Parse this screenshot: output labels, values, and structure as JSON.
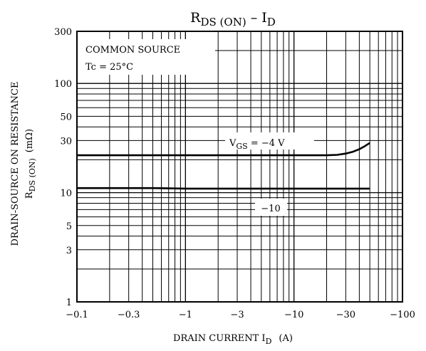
{
  "chart_data": {
    "type": "line",
    "title_main": "R",
    "title_sub": "DS (ON)",
    "title_rest": "  –  I",
    "title_sub2": "D",
    "xscale": "log",
    "yscale": "log",
    "xlim": [
      -0.1,
      -100
    ],
    "ylim": [
      1,
      300
    ],
    "grid": true,
    "x_ticks": [
      -0.1,
      -0.3,
      -1,
      -3,
      -10,
      -30,
      -100
    ],
    "x_tick_labels": [
      "−0.1",
      "−0.3",
      "−1",
      "−3",
      "−10",
      "−30",
      "−100"
    ],
    "y_ticks": [
      1,
      3,
      5,
      10,
      30,
      50,
      100,
      300
    ],
    "y_tick_labels": [
      "1",
      "3",
      "5",
      "10",
      "30",
      "50",
      "100",
      "300"
    ],
    "xlabel_main": "DRAIN CURRENT  I",
    "xlabel_sub": "D",
    "xlabel_unit": "(A)",
    "ylabel_line1": "DRAIN-SOURCE ON RESISTANCE",
    "ylabel_line2_main": "R",
    "ylabel_line2_sub": "DS (ON)",
    "ylabel_line2_unit": "(mΩ)",
    "annotations": {
      "common_source": "COMMON SOURCE",
      "tc": "Tc = 25°C",
      "vgs_main": "V",
      "vgs_sub": "GS",
      "vgs_value": " = −4 V",
      "minus10": "−10"
    },
    "series": [
      {
        "x": [
          -0.1,
          -1,
          -10,
          -20,
          -25,
          -30,
          -35,
          -40,
          -45,
          -50
        ],
        "y": [
          22,
          22,
          22,
          22,
          22.2,
          22.8,
          23.7,
          25,
          26.7,
          28.5
        ]
      },
      {
        "x": [
          -0.1,
          -0.5,
          -1,
          -10,
          -50
        ],
        "y": [
          11,
          11,
          10.9,
          10.9,
          10.9
        ]
      }
    ]
  }
}
